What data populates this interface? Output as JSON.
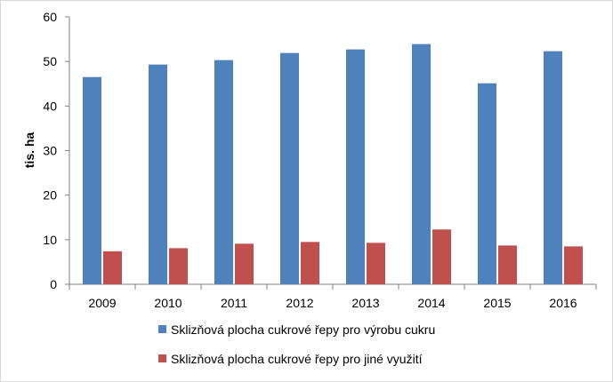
{
  "chart_data": {
    "type": "bar",
    "categories": [
      "2009",
      "2010",
      "2011",
      "2012",
      "2013",
      "2014",
      "2015",
      "2016"
    ],
    "series": [
      {
        "name": "Sklizňová plocha cukrové řepy pro výrobu cukru",
        "color": "#4f81bd",
        "values": [
          46.5,
          49.3,
          50.3,
          51.9,
          52.7,
          53.9,
          45.1,
          52.3
        ]
      },
      {
        "name": "Sklizňová plocha cukrové řepy pro jiné využití",
        "color": "#c0504d",
        "values": [
          7.4,
          8.1,
          9.1,
          9.5,
          9.3,
          12.3,
          8.7,
          8.5
        ]
      }
    ],
    "ylabel": "tis. ha",
    "ylim": [
      0,
      60
    ],
    "yticks": [
      0,
      10,
      20,
      30,
      40,
      50,
      60
    ],
    "grid": false,
    "legend": "bottom"
  }
}
